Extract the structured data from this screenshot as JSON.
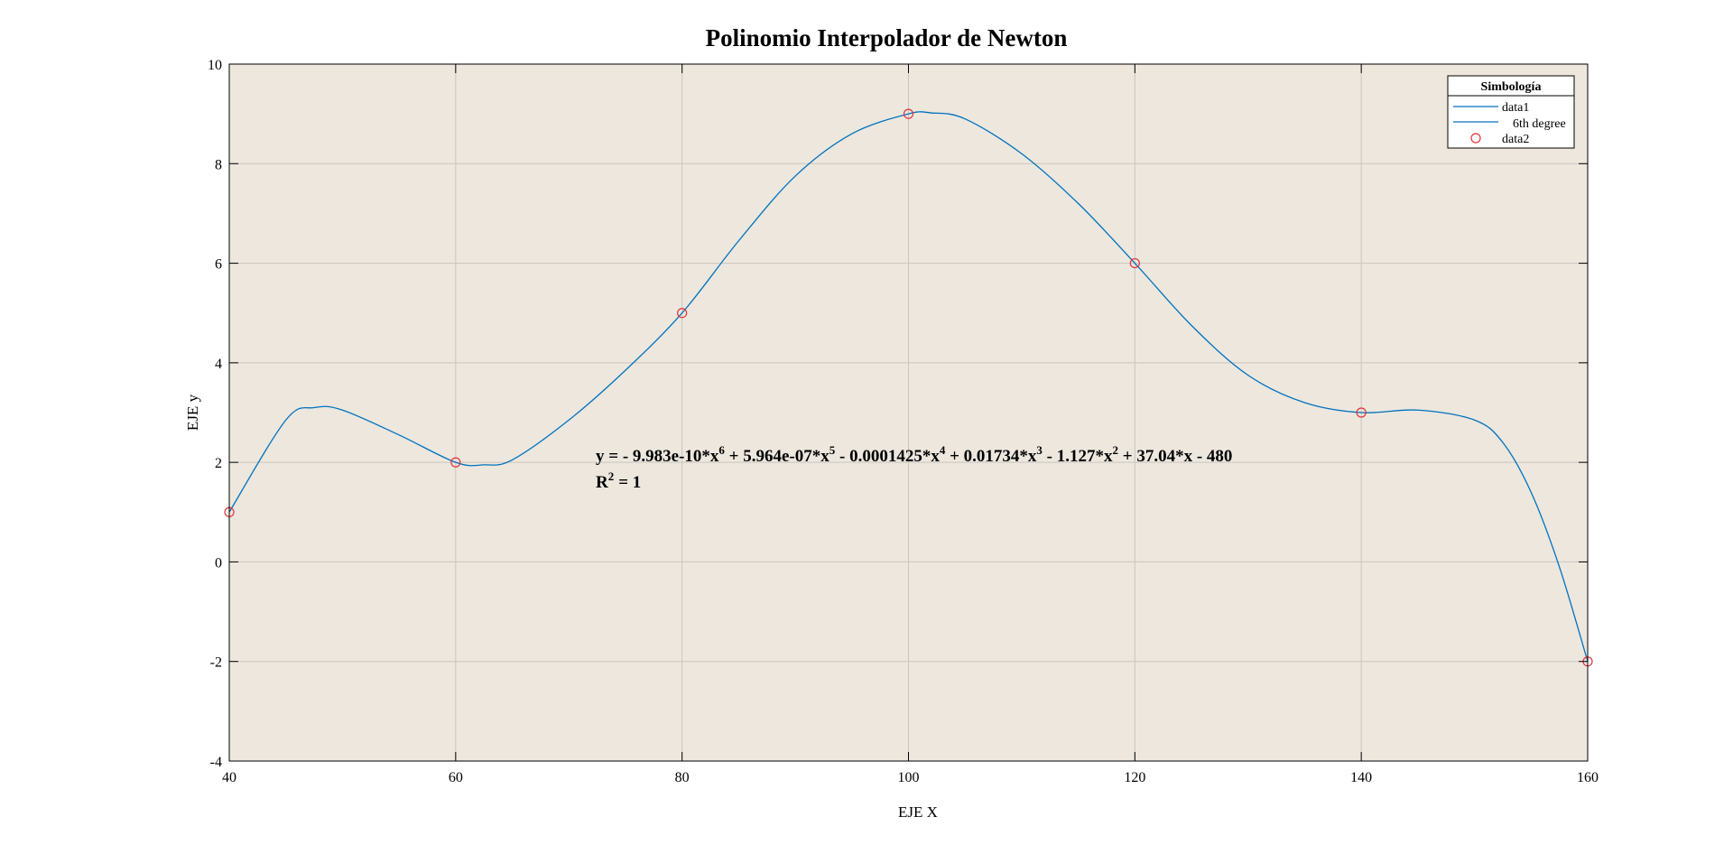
{
  "chart_data": {
    "type": "line",
    "title": "Polinomio Interpolador de Newton",
    "xlabel": "EJE X",
    "ylabel": "EJE y",
    "xlim": [
      40,
      160
    ],
    "ylim": [
      -4,
      10
    ],
    "xticks": [
      40,
      60,
      80,
      100,
      120,
      140,
      160
    ],
    "yticks": [
      -4,
      -2,
      0,
      2,
      4,
      6,
      8,
      10
    ],
    "xtick_labels": [
      "40",
      "60",
      "80",
      "100",
      "120",
      "140",
      "160"
    ],
    "ytick_labels": [
      "-4",
      "-2",
      "0",
      "2",
      "4",
      "6",
      "8",
      "10"
    ],
    "grid": true,
    "legend": {
      "title": "Simbología",
      "placement": "top-right",
      "entries": [
        {
          "label": "data1",
          "marker": "line"
        },
        {
          "label": "6th degree",
          "marker": "line"
        },
        {
          "label": "data2",
          "marker": "circle"
        }
      ]
    },
    "series": [
      {
        "name": "data2",
        "kind": "points",
        "x": [
          40,
          60,
          80,
          100,
          120,
          140,
          160
        ],
        "y": [
          1,
          2,
          5,
          9,
          6,
          3,
          -2
        ]
      },
      {
        "name": "6th degree",
        "kind": "curve",
        "x": [
          40,
          45,
          47.5,
          50,
          55,
          60,
          62.5,
          65,
          70,
          75,
          80,
          85,
          90,
          95,
          100,
          102,
          105,
          110,
          115,
          120,
          125,
          130,
          135,
          140,
          145,
          150,
          152.5,
          155,
          157.5,
          160
        ],
        "y": [
          1,
          2.85,
          3.1,
          3.05,
          2.55,
          2,
          1.95,
          2.05,
          2.85,
          3.85,
          5,
          6.45,
          7.75,
          8.6,
          9,
          9.02,
          8.9,
          8.2,
          7.2,
          6,
          4.75,
          3.75,
          3.2,
          3,
          3.05,
          2.85,
          2.4,
          1.4,
          -0.1,
          -2
        ]
      }
    ],
    "annotations": {
      "equation": {
        "y": "y",
        "eq": "=",
        "c6": "- 9.983e-10*x",
        "e6": "6",
        "c5": "+ 5.964e-07*x",
        "e5": "5",
        "c4": "- 0.0001425*x",
        "e4": "4",
        "c3": "+ 0.01734*x",
        "e3": "3",
        "c2": "- 1.127*x",
        "e2": "2",
        "c1": "+ 37.04*x - 480"
      },
      "r2": {
        "r": "R",
        "exp": "2",
        "rest": "= 1"
      }
    },
    "colors": {
      "plot_background": "#ede7de",
      "curve": "#0072bd",
      "points": "#e0333a",
      "grid": "#c9c6bf",
      "axes": "#000000"
    }
  }
}
